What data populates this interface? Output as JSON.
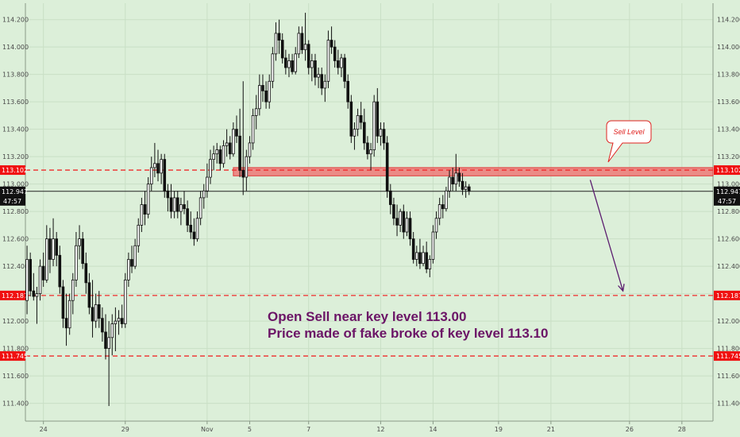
{
  "chart_data": {
    "type": "candlestick",
    "y_axis": {
      "ylim": [
        111.27,
        114.32
      ],
      "ticks": [
        "111.400",
        "111.600",
        "111.800",
        "112.000",
        "112.200",
        "112.400",
        "112.600",
        "112.800",
        "113.000",
        "113.200",
        "113.400",
        "113.600",
        "113.800",
        "114.000",
        "114.200"
      ]
    },
    "x_axis": {
      "ticks": [
        {
          "label": "24",
          "index": 5
        },
        {
          "label": "29",
          "index": 30
        },
        {
          "label": "Nov",
          "index": 55
        },
        {
          "label": "5",
          "index": 68
        },
        {
          "label": "7",
          "index": 86
        },
        {
          "label": "12",
          "index": 108
        },
        {
          "label": "14",
          "index": 124
        },
        {
          "label": "19",
          "index": 144
        },
        {
          "label": "21",
          "index": 160
        },
        {
          "label": "26",
          "index": 184
        },
        {
          "label": "28",
          "index": 200
        }
      ],
      "n_slots": 210
    },
    "levels": [
      {
        "value": 113.102,
        "label": "113.102",
        "style": "dashed",
        "color": "#ef2b2b"
      },
      {
        "value": 112.187,
        "label": "112.187",
        "style": "dashed",
        "color": "#ef2b2b"
      },
      {
        "value": 111.745,
        "label": "111.745",
        "style": "dashed",
        "color": "#ef2b2b"
      }
    ],
    "current_price": {
      "value": 112.947,
      "label": "112.947",
      "countdown": "47:57",
      "color": "#111111"
    },
    "zone": {
      "from_index": 63,
      "y_low": 113.06,
      "y_high": 113.12,
      "color": "#f06a6a"
    },
    "callout": {
      "text": "Sell Level"
    },
    "arrow": {
      "from_index": 172,
      "from_y": 113.03,
      "to_index": 182,
      "to_y": 112.22,
      "color": "#5a1b6e"
    },
    "annotations": [
      "Open Sell near key level  113.00",
      "Price made of fake broke of key level 113.10"
    ],
    "colors": {
      "up": "#ffffff",
      "down": "#111111",
      "wick": "#111111",
      "background": "#dcefd9",
      "grid": "#c9dfc5"
    },
    "candles": [
      {
        "o": 112.15,
        "h": 112.55,
        "l": 112.05,
        "c": 112.45
      },
      {
        "o": 112.45,
        "h": 112.5,
        "l": 112.18,
        "c": 112.22
      },
      {
        "o": 112.22,
        "h": 112.35,
        "l": 112.15,
        "c": 112.18
      },
      {
        "o": 112.18,
        "h": 112.25,
        "l": 111.98,
        "c": 112.2
      },
      {
        "o": 112.2,
        "h": 112.45,
        "l": 112.15,
        "c": 112.4
      },
      {
        "o": 112.4,
        "h": 112.5,
        "l": 112.25,
        "c": 112.3
      },
      {
        "o": 112.3,
        "h": 112.7,
        "l": 112.28,
        "c": 112.6
      },
      {
        "o": 112.6,
        "h": 112.68,
        "l": 112.35,
        "c": 112.45
      },
      {
        "o": 112.45,
        "h": 112.75,
        "l": 112.4,
        "c": 112.6
      },
      {
        "o": 112.6,
        "h": 112.65,
        "l": 112.4,
        "c": 112.48
      },
      {
        "o": 112.48,
        "h": 112.55,
        "l": 112.2,
        "c": 112.25
      },
      {
        "o": 112.25,
        "h": 112.3,
        "l": 111.95,
        "c": 112.02
      },
      {
        "o": 112.02,
        "h": 112.2,
        "l": 111.82,
        "c": 111.95
      },
      {
        "o": 111.95,
        "h": 112.2,
        "l": 111.9,
        "c": 112.15
      },
      {
        "o": 112.15,
        "h": 112.35,
        "l": 112.05,
        "c": 112.3
      },
      {
        "o": 112.3,
        "h": 112.65,
        "l": 112.25,
        "c": 112.55
      },
      {
        "o": 112.55,
        "h": 112.7,
        "l": 112.45,
        "c": 112.6
      },
      {
        "o": 112.6,
        "h": 112.65,
        "l": 112.38,
        "c": 112.42
      },
      {
        "o": 112.42,
        "h": 112.5,
        "l": 112.2,
        "c": 112.28
      },
      {
        "o": 112.28,
        "h": 112.35,
        "l": 112.05,
        "c": 112.1
      },
      {
        "o": 112.1,
        "h": 112.3,
        "l": 111.88,
        "c": 112.0
      },
      {
        "o": 112.0,
        "h": 112.2,
        "l": 111.95,
        "c": 112.12
      },
      {
        "o": 112.12,
        "h": 112.22,
        "l": 111.95,
        "c": 112.02
      },
      {
        "o": 112.02,
        "h": 112.1,
        "l": 111.85,
        "c": 111.92
      },
      {
        "o": 111.92,
        "h": 112.05,
        "l": 111.72,
        "c": 111.8
      },
      {
        "o": 111.8,
        "h": 112.0,
        "l": 111.38,
        "c": 111.88
      },
      {
        "o": 111.88,
        "h": 112.05,
        "l": 111.75,
        "c": 111.98
      },
      {
        "o": 111.98,
        "h": 112.1,
        "l": 111.78,
        "c": 112.0
      },
      {
        "o": 112.0,
        "h": 112.08,
        "l": 111.9,
        "c": 112.02
      },
      {
        "o": 112.02,
        "h": 112.12,
        "l": 111.95,
        "c": 111.98
      },
      {
        "o": 111.98,
        "h": 112.35,
        "l": 111.95,
        "c": 112.3
      },
      {
        "o": 112.3,
        "h": 112.5,
        "l": 112.25,
        "c": 112.45
      },
      {
        "o": 112.45,
        "h": 112.55,
        "l": 112.35,
        "c": 112.4
      },
      {
        "o": 112.4,
        "h": 112.6,
        "l": 112.38,
        "c": 112.55
      },
      {
        "o": 112.55,
        "h": 112.75,
        "l": 112.5,
        "c": 112.7
      },
      {
        "o": 112.7,
        "h": 112.9,
        "l": 112.65,
        "c": 112.85
      },
      {
        "o": 112.85,
        "h": 112.95,
        "l": 112.7,
        "c": 112.78
      },
      {
        "o": 112.78,
        "h": 113.05,
        "l": 112.75,
        "c": 113.0
      },
      {
        "o": 113.0,
        "h": 113.2,
        "l": 112.95,
        "c": 113.12
      },
      {
        "o": 113.12,
        "h": 113.3,
        "l": 113.05,
        "c": 113.15
      },
      {
        "o": 113.15,
        "h": 113.25,
        "l": 113.02,
        "c": 113.08
      },
      {
        "o": 113.08,
        "h": 113.22,
        "l": 113.0,
        "c": 113.18
      },
      {
        "o": 113.18,
        "h": 113.22,
        "l": 112.9,
        "c": 112.95
      },
      {
        "o": 112.95,
        "h": 113.0,
        "l": 112.8,
        "c": 112.9
      },
      {
        "o": 112.9,
        "h": 113.0,
        "l": 112.75,
        "c": 112.8
      },
      {
        "o": 112.8,
        "h": 112.95,
        "l": 112.75,
        "c": 112.9
      },
      {
        "o": 112.9,
        "h": 112.95,
        "l": 112.75,
        "c": 112.8
      },
      {
        "o": 112.8,
        "h": 112.9,
        "l": 112.7,
        "c": 112.85
      },
      {
        "o": 112.85,
        "h": 112.95,
        "l": 112.78,
        "c": 112.82
      },
      {
        "o": 112.82,
        "h": 112.88,
        "l": 112.65,
        "c": 112.7
      },
      {
        "o": 112.7,
        "h": 112.8,
        "l": 112.6,
        "c": 112.65
      },
      {
        "o": 112.65,
        "h": 112.75,
        "l": 112.55,
        "c": 112.6
      },
      {
        "o": 112.6,
        "h": 112.8,
        "l": 112.58,
        "c": 112.75
      },
      {
        "o": 112.75,
        "h": 112.95,
        "l": 112.7,
        "c": 112.9
      },
      {
        "o": 112.9,
        "h": 113.0,
        "l": 112.82,
        "c": 112.95
      },
      {
        "o": 112.95,
        "h": 113.15,
        "l": 112.9,
        "c": 113.05
      },
      {
        "o": 113.05,
        "h": 113.25,
        "l": 113.0,
        "c": 113.18
      },
      {
        "o": 113.18,
        "h": 113.28,
        "l": 113.1,
        "c": 113.22
      },
      {
        "o": 113.22,
        "h": 113.3,
        "l": 113.15,
        "c": 113.25
      },
      {
        "o": 113.25,
        "h": 113.28,
        "l": 113.1,
        "c": 113.15
      },
      {
        "o": 113.15,
        "h": 113.32,
        "l": 113.12,
        "c": 113.28
      },
      {
        "o": 113.28,
        "h": 113.4,
        "l": 113.2,
        "c": 113.3
      },
      {
        "o": 113.3,
        "h": 113.35,
        "l": 113.18,
        "c": 113.22
      },
      {
        "o": 113.22,
        "h": 113.45,
        "l": 113.2,
        "c": 113.4
      },
      {
        "o": 113.4,
        "h": 113.5,
        "l": 113.3,
        "c": 113.35
      },
      {
        "o": 113.35,
        "h": 113.55,
        "l": 113.05,
        "c": 113.1
      },
      {
        "o": 113.1,
        "h": 113.75,
        "l": 112.92,
        "c": 113.05
      },
      {
        "o": 113.05,
        "h": 113.25,
        "l": 112.95,
        "c": 113.2
      },
      {
        "o": 113.2,
        "h": 113.35,
        "l": 113.15,
        "c": 113.3
      },
      {
        "o": 113.3,
        "h": 113.55,
        "l": 113.25,
        "c": 113.5
      },
      {
        "o": 113.5,
        "h": 113.65,
        "l": 113.4,
        "c": 113.55
      },
      {
        "o": 113.55,
        "h": 113.8,
        "l": 113.5,
        "c": 113.72
      },
      {
        "o": 113.72,
        "h": 113.8,
        "l": 113.6,
        "c": 113.68
      },
      {
        "o": 113.68,
        "h": 113.75,
        "l": 113.55,
        "c": 113.6
      },
      {
        "o": 113.6,
        "h": 113.8,
        "l": 113.55,
        "c": 113.75
      },
      {
        "o": 113.75,
        "h": 114.0,
        "l": 113.7,
        "c": 113.95
      },
      {
        "o": 113.95,
        "h": 114.18,
        "l": 113.9,
        "c": 114.1
      },
      {
        "o": 114.1,
        "h": 114.2,
        "l": 113.95,
        "c": 114.05
      },
      {
        "o": 114.05,
        "h": 114.1,
        "l": 113.88,
        "c": 113.92
      },
      {
        "o": 113.92,
        "h": 113.98,
        "l": 113.8,
        "c": 113.85
      },
      {
        "o": 113.85,
        "h": 113.95,
        "l": 113.78,
        "c": 113.9
      },
      {
        "o": 113.9,
        "h": 113.95,
        "l": 113.8,
        "c": 113.82
      },
      {
        "o": 113.82,
        "h": 114.0,
        "l": 113.8,
        "c": 113.95
      },
      {
        "o": 113.95,
        "h": 114.15,
        "l": 113.92,
        "c": 114.1
      },
      {
        "o": 114.1,
        "h": 114.15,
        "l": 113.95,
        "c": 113.98
      },
      {
        "o": 113.98,
        "h": 114.25,
        "l": 113.9,
        "c": 114.02
      },
      {
        "o": 114.02,
        "h": 114.05,
        "l": 113.8,
        "c": 113.85
      },
      {
        "o": 113.85,
        "h": 113.95,
        "l": 113.75,
        "c": 113.9
      },
      {
        "o": 113.9,
        "h": 113.95,
        "l": 113.72,
        "c": 113.78
      },
      {
        "o": 113.78,
        "h": 113.85,
        "l": 113.7,
        "c": 113.8
      },
      {
        "o": 113.8,
        "h": 113.85,
        "l": 113.65,
        "c": 113.7
      },
      {
        "o": 113.7,
        "h": 113.8,
        "l": 113.6,
        "c": 113.75
      },
      {
        "o": 113.75,
        "h": 114.12,
        "l": 113.7,
        "c": 114.05
      },
      {
        "o": 114.05,
        "h": 114.15,
        "l": 113.95,
        "c": 114.0
      },
      {
        "o": 114.0,
        "h": 114.05,
        "l": 113.85,
        "c": 113.9
      },
      {
        "o": 113.9,
        "h": 113.98,
        "l": 113.8,
        "c": 113.85
      },
      {
        "o": 113.85,
        "h": 113.95,
        "l": 113.78,
        "c": 113.92
      },
      {
        "o": 113.92,
        "h": 113.95,
        "l": 113.7,
        "c": 113.75
      },
      {
        "o": 113.75,
        "h": 113.8,
        "l": 113.55,
        "c": 113.6
      },
      {
        "o": 113.6,
        "h": 113.65,
        "l": 113.3,
        "c": 113.35
      },
      {
        "o": 113.35,
        "h": 113.45,
        "l": 113.25,
        "c": 113.4
      },
      {
        "o": 113.4,
        "h": 113.55,
        "l": 113.35,
        "c": 113.5
      },
      {
        "o": 113.5,
        "h": 113.6,
        "l": 113.4,
        "c": 113.45
      },
      {
        "o": 113.45,
        "h": 113.55,
        "l": 113.25,
        "c": 113.3
      },
      {
        "o": 113.3,
        "h": 113.35,
        "l": 113.18,
        "c": 113.22
      },
      {
        "o": 113.22,
        "h": 113.3,
        "l": 113.1,
        "c": 113.25
      },
      {
        "o": 113.25,
        "h": 113.65,
        "l": 113.2,
        "c": 113.6
      },
      {
        "o": 113.6,
        "h": 113.7,
        "l": 113.3,
        "c": 113.35
      },
      {
        "o": 113.35,
        "h": 113.45,
        "l": 113.28,
        "c": 113.4
      },
      {
        "o": 113.4,
        "h": 113.45,
        "l": 113.25,
        "c": 113.3
      },
      {
        "o": 113.3,
        "h": 113.35,
        "l": 112.9,
        "c": 112.95
      },
      {
        "o": 112.95,
        "h": 113.0,
        "l": 112.78,
        "c": 112.85
      },
      {
        "o": 112.85,
        "h": 112.9,
        "l": 112.7,
        "c": 112.75
      },
      {
        "o": 112.75,
        "h": 112.85,
        "l": 112.62,
        "c": 112.7
      },
      {
        "o": 112.7,
        "h": 112.82,
        "l": 112.65,
        "c": 112.8
      },
      {
        "o": 112.8,
        "h": 112.85,
        "l": 112.6,
        "c": 112.65
      },
      {
        "o": 112.65,
        "h": 112.8,
        "l": 112.62,
        "c": 112.75
      },
      {
        "o": 112.75,
        "h": 112.8,
        "l": 112.55,
        "c": 112.6
      },
      {
        "o": 112.6,
        "h": 112.65,
        "l": 112.42,
        "c": 112.45
      },
      {
        "o": 112.45,
        "h": 112.55,
        "l": 112.4,
        "c": 112.5
      },
      {
        "o": 112.5,
        "h": 112.6,
        "l": 112.38,
        "c": 112.42
      },
      {
        "o": 112.42,
        "h": 112.55,
        "l": 112.4,
        "c": 112.5
      },
      {
        "o": 112.5,
        "h": 112.58,
        "l": 112.35,
        "c": 112.38
      },
      {
        "o": 112.38,
        "h": 112.48,
        "l": 112.32,
        "c": 112.45
      },
      {
        "o": 112.45,
        "h": 112.7,
        "l": 112.42,
        "c": 112.65
      },
      {
        "o": 112.65,
        "h": 112.8,
        "l": 112.6,
        "c": 112.75
      },
      {
        "o": 112.75,
        "h": 112.9,
        "l": 112.7,
        "c": 112.85
      },
      {
        "o": 112.85,
        "h": 112.92,
        "l": 112.75,
        "c": 112.82
      },
      {
        "o": 112.82,
        "h": 112.98,
        "l": 112.8,
        "c": 112.95
      },
      {
        "o": 112.95,
        "h": 113.1,
        "l": 112.9,
        "c": 113.05
      },
      {
        "o": 113.05,
        "h": 113.12,
        "l": 112.95,
        "c": 113.0
      },
      {
        "o": 113.0,
        "h": 113.22,
        "l": 112.95,
        "c": 113.08
      },
      {
        "o": 113.08,
        "h": 113.12,
        "l": 112.98,
        "c": 113.02
      },
      {
        "o": 113.02,
        "h": 113.08,
        "l": 112.92,
        "c": 112.96
      },
      {
        "o": 112.96,
        "h": 113.02,
        "l": 112.9,
        "c": 112.98
      },
      {
        "o": 112.98,
        "h": 113.0,
        "l": 112.92,
        "c": 112.95
      }
    ]
  }
}
